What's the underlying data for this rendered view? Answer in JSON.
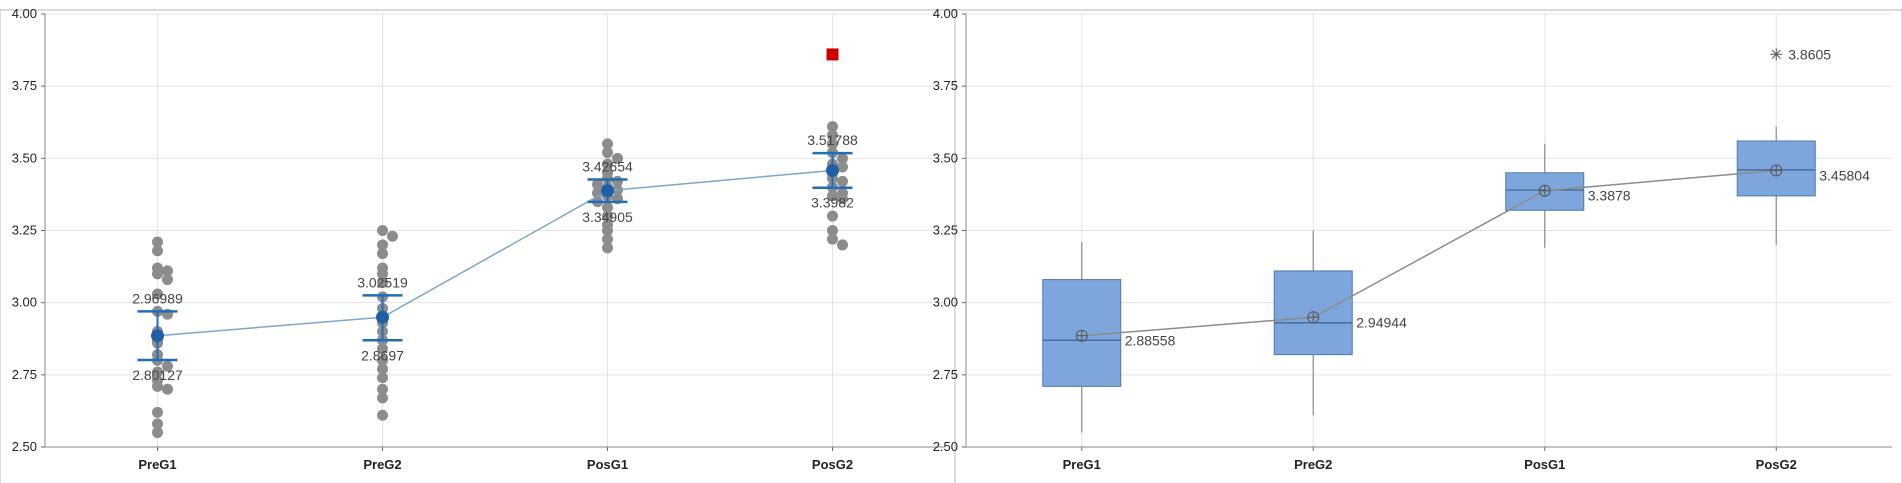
{
  "chart_data": [
    {
      "type": "scatter",
      "categories": [
        "PreG1",
        "PreG2",
        "PosG1",
        "PosG2"
      ],
      "ylim": [
        2.5,
        4.0
      ],
      "yticks": [
        "2.50",
        "2.75",
        "3.00",
        "3.25",
        "3.50",
        "3.75",
        "4.00"
      ],
      "grid": true,
      "points": [
        [
          3.21,
          3.18,
          3.12,
          3.11,
          3.1,
          3.08,
          3.03,
          2.97,
          2.96,
          2.9,
          2.87,
          2.86,
          2.82,
          2.8,
          2.78,
          2.76,
          2.73,
          2.71,
          2.7,
          2.62,
          2.58,
          2.55
        ],
        [
          3.25,
          3.23,
          3.2,
          3.17,
          3.12,
          3.1,
          3.07,
          3.02,
          2.98,
          2.93,
          2.9,
          2.87,
          2.84,
          2.8,
          2.77,
          2.74,
          2.7,
          2.67,
          2.61
        ],
        [
          3.55,
          3.52,
          3.5,
          3.48,
          3.45,
          3.43,
          3.42,
          3.41,
          3.4,
          3.39,
          3.38,
          3.37,
          3.36,
          3.35,
          3.33,
          3.3,
          3.27,
          3.25,
          3.22,
          3.19
        ],
        [
          3.61,
          3.58,
          3.55,
          3.52,
          3.5,
          3.48,
          3.47,
          3.45,
          3.43,
          3.42,
          3.4,
          3.38,
          3.37,
          3.36,
          3.3,
          3.25,
          3.22,
          3.2
        ]
      ],
      "outliers": [
        {
          "category": "PosG2",
          "value": 3.86
        }
      ],
      "means": [
        2.88558,
        2.94944,
        3.3878,
        3.45804
      ],
      "ci_upper": [
        2.96989,
        3.02519,
        3.42654,
        3.51788
      ],
      "ci_lower": [
        2.80127,
        2.8697,
        3.34905,
        3.3982
      ],
      "ci_upper_labels": [
        "2.96989",
        "3.02519",
        "3.42654",
        "3.51788"
      ],
      "ci_lower_labels": [
        "2.80127",
        "2.8697",
        "3.34905",
        "3.3982"
      ],
      "colors": {
        "points": "#8c8c8c",
        "mean": "#1f5fa8",
        "ci": "#1f6fb8",
        "line": "#7aa6cf",
        "outlier": "#cc0000"
      }
    },
    {
      "type": "box",
      "categories": [
        "PreG1",
        "PreG2",
        "PosG1",
        "PosG2"
      ],
      "ylim": [
        2.5,
        4.0
      ],
      "yticks": [
        "2.50",
        "2.75",
        "3.00",
        "3.25",
        "3.50",
        "3.75",
        "4.00"
      ],
      "grid": true,
      "boxes": [
        {
          "min": 2.55,
          "q1": 2.71,
          "median": 2.87,
          "q3": 3.08,
          "max": 3.21,
          "mean": 2.88558
        },
        {
          "min": 2.61,
          "q1": 2.82,
          "median": 2.93,
          "q3": 3.11,
          "max": 3.25,
          "mean": 2.94944
        },
        {
          "min": 3.19,
          "q1": 3.32,
          "median": 3.39,
          "q3": 3.45,
          "max": 3.55,
          "mean": 3.3878
        },
        {
          "min": 3.2,
          "q1": 3.37,
          "median": 3.46,
          "q3": 3.56,
          "max": 3.61,
          "mean": 3.45804
        }
      ],
      "mean_labels": [
        "2.88558",
        "2.94944",
        "3.3878",
        "3.45804"
      ],
      "outliers": [
        {
          "category": "PosG2",
          "value": 3.8605,
          "label": "3.8605"
        }
      ],
      "colors": {
        "box": "#7ca6dc",
        "box_edge": "#4f79b0",
        "line": "#8c8c8c",
        "marker": "#555555"
      }
    }
  ]
}
